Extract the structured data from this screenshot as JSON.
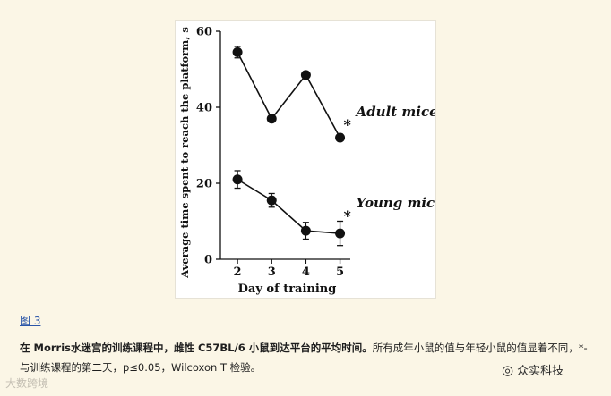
{
  "chart_data": {
    "type": "line",
    "ylabel": "Average time spent to reach the platform, s",
    "xlabel": "Day of training",
    "x": [
      2,
      3,
      4,
      5
    ],
    "xlim": [
      1.5,
      5.3
    ],
    "ylim": [
      0,
      60
    ],
    "yticks": [
      0,
      20,
      40,
      60
    ],
    "grid": false,
    "series": [
      {
        "name": "Adult mice",
        "values": [
          54.5,
          37,
          48.5,
          32
        ],
        "errors": [
          1.5,
          0.8,
          0.8,
          0.8
        ],
        "significance": "*"
      },
      {
        "name": "Young mice",
        "values": [
          21,
          15.5,
          7.5,
          6.8
        ],
        "errors": [
          2.3,
          1.8,
          2.2,
          3.2
        ],
        "significance": "*"
      }
    ]
  },
  "figure_link": "图 3",
  "caption": {
    "bold": "在 Morris水迷宫的训练课程中，雌性 C57BL/6 小鼠到达平台的平均时间。",
    "normal": "所有成年小鼠的值与年轻小鼠的值显着不同，*- 与训练课程的第二天，p≤0.05，Wilcoxon T 检验。"
  },
  "watermarks": {
    "left": "大数跨境",
    "right": "众实科技",
    "right_icon": "wechat-icon"
  }
}
